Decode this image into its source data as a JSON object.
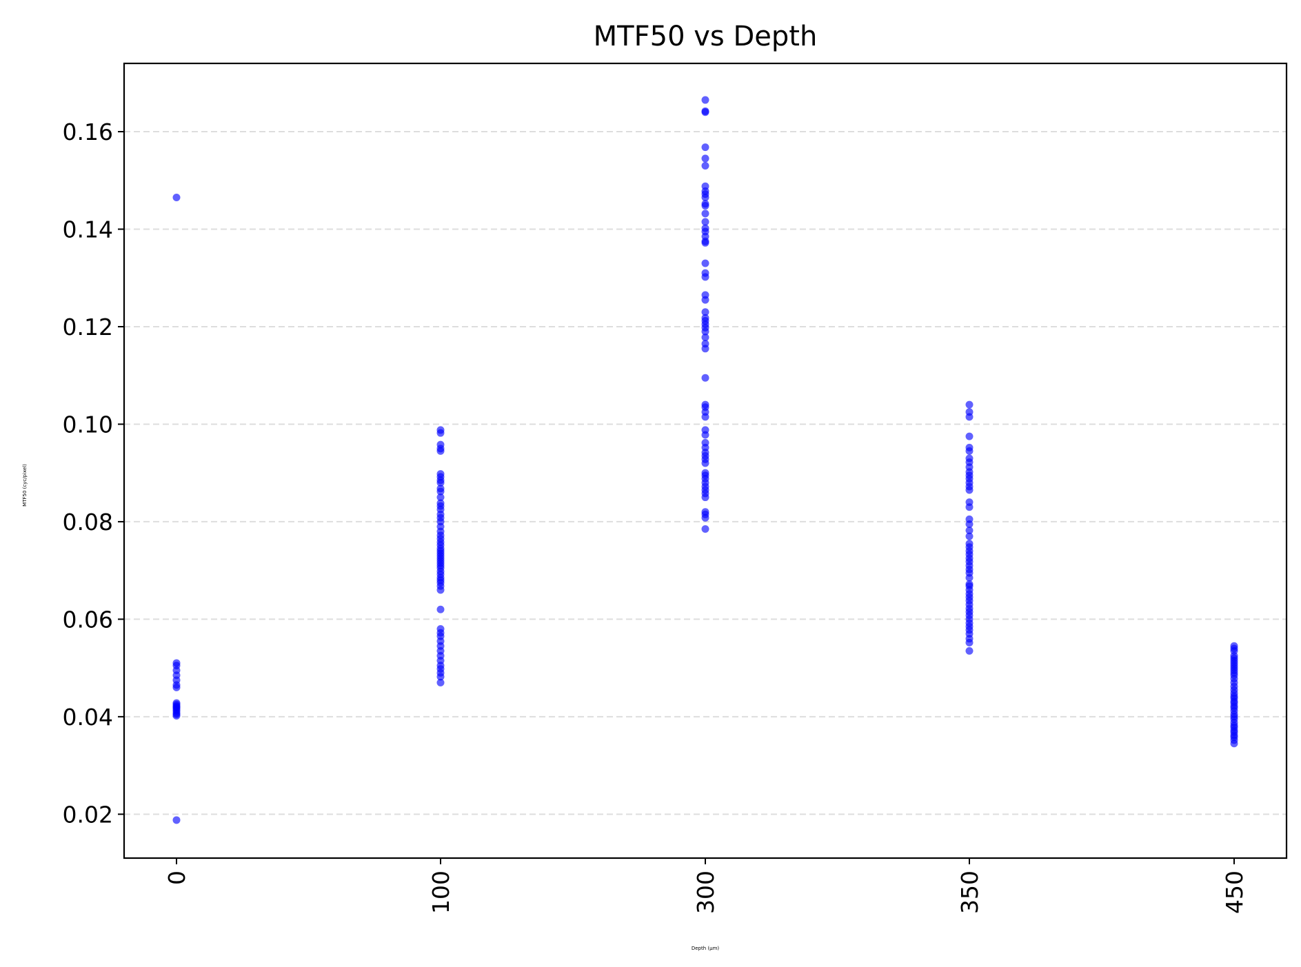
{
  "chart_data": {
    "type": "scatter",
    "title": "MTF50 vs Depth",
    "xlabel": "Depth (µm)",
    "ylabel": "MTF50 (cyc/pixel)",
    "categories": [
      "0",
      "100",
      "300",
      "350",
      "450"
    ],
    "ylim": [
      0.011,
      0.174
    ],
    "yticks": [
      0.02,
      0.04,
      0.06,
      0.08,
      0.1,
      0.12,
      0.14,
      0.16
    ],
    "ytick_labels": [
      "0.02",
      "0.04",
      "0.06",
      "0.08",
      "0.10",
      "0.12",
      "0.14",
      "0.16"
    ],
    "x_tick_rotation": "vertical",
    "grid": "y-dashed",
    "point_color": "#0000ff",
    "series": [
      {
        "category": "0",
        "values": [
          0.1465,
          0.051,
          0.0505,
          0.0495,
          0.0485,
          0.0475,
          0.0465,
          0.046,
          0.0428,
          0.0425,
          0.0422,
          0.042,
          0.0418,
          0.0415,
          0.0412,
          0.0408,
          0.0405,
          0.0402,
          0.0188
        ]
      },
      {
        "category": "100",
        "values": [
          0.0988,
          0.0982,
          0.0958,
          0.095,
          0.0945,
          0.0898,
          0.0892,
          0.0885,
          0.088,
          0.0868,
          0.0862,
          0.085,
          0.0838,
          0.0832,
          0.0825,
          0.0815,
          0.0808,
          0.08,
          0.079,
          0.078,
          0.0772,
          0.0765,
          0.0758,
          0.0752,
          0.0745,
          0.074,
          0.0735,
          0.073,
          0.0725,
          0.072,
          0.0715,
          0.071,
          0.0705,
          0.0698,
          0.0692,
          0.0685,
          0.068,
          0.0675,
          0.0668,
          0.066,
          0.062,
          0.058,
          0.0572,
          0.0565,
          0.0555,
          0.0545,
          0.0535,
          0.0525,
          0.0515,
          0.0505,
          0.0498,
          0.049,
          0.0482,
          0.047
        ]
      },
      {
        "category": "300",
        "values": [
          0.1665,
          0.1642,
          0.164,
          0.1568,
          0.1545,
          0.153,
          0.1488,
          0.1478,
          0.1472,
          0.1465,
          0.1452,
          0.1448,
          0.1432,
          0.1415,
          0.1402,
          0.1395,
          0.1385,
          0.1375,
          0.1372,
          0.133,
          0.131,
          0.1302,
          0.1265,
          0.1255,
          0.123,
          0.1218,
          0.1212,
          0.1205,
          0.1198,
          0.119,
          0.1178,
          0.1165,
          0.1155,
          0.1095,
          0.104,
          0.1035,
          0.1025,
          0.1015,
          0.0988,
          0.0978,
          0.0962,
          0.0952,
          0.0942,
          0.0935,
          0.0928,
          0.092,
          0.09,
          0.0895,
          0.0888,
          0.088,
          0.0872,
          0.0865,
          0.0858,
          0.085,
          0.082,
          0.0815,
          0.0808,
          0.0785
        ]
      },
      {
        "category": "350",
        "values": [
          0.104,
          0.1025,
          0.1015,
          0.0975,
          0.0952,
          0.0945,
          0.093,
          0.0922,
          0.0912,
          0.0902,
          0.0895,
          0.0888,
          0.088,
          0.0872,
          0.0865,
          0.084,
          0.083,
          0.0805,
          0.0795,
          0.0782,
          0.077,
          0.0755,
          0.0748,
          0.074,
          0.0733,
          0.0725,
          0.0718,
          0.071,
          0.0702,
          0.0695,
          0.0685,
          0.0672,
          0.0668,
          0.066,
          0.0652,
          0.0645,
          0.0638,
          0.063,
          0.0622,
          0.0615,
          0.0608,
          0.06,
          0.0592,
          0.0585,
          0.0578,
          0.057,
          0.056,
          0.0552,
          0.0535
        ]
      },
      {
        "category": "450",
        "values": [
          0.0545,
          0.054,
          0.0535,
          0.0525,
          0.052,
          0.0515,
          0.051,
          0.0505,
          0.05,
          0.0495,
          0.049,
          0.0485,
          0.0478,
          0.047,
          0.0462,
          0.0455,
          0.0448,
          0.0442,
          0.0438,
          0.0432,
          0.0428,
          0.0422,
          0.0418,
          0.0412,
          0.0405,
          0.04,
          0.0395,
          0.0388,
          0.0382,
          0.0378,
          0.0372,
          0.0368,
          0.0362,
          0.0358,
          0.0352,
          0.0345
        ]
      }
    ]
  }
}
